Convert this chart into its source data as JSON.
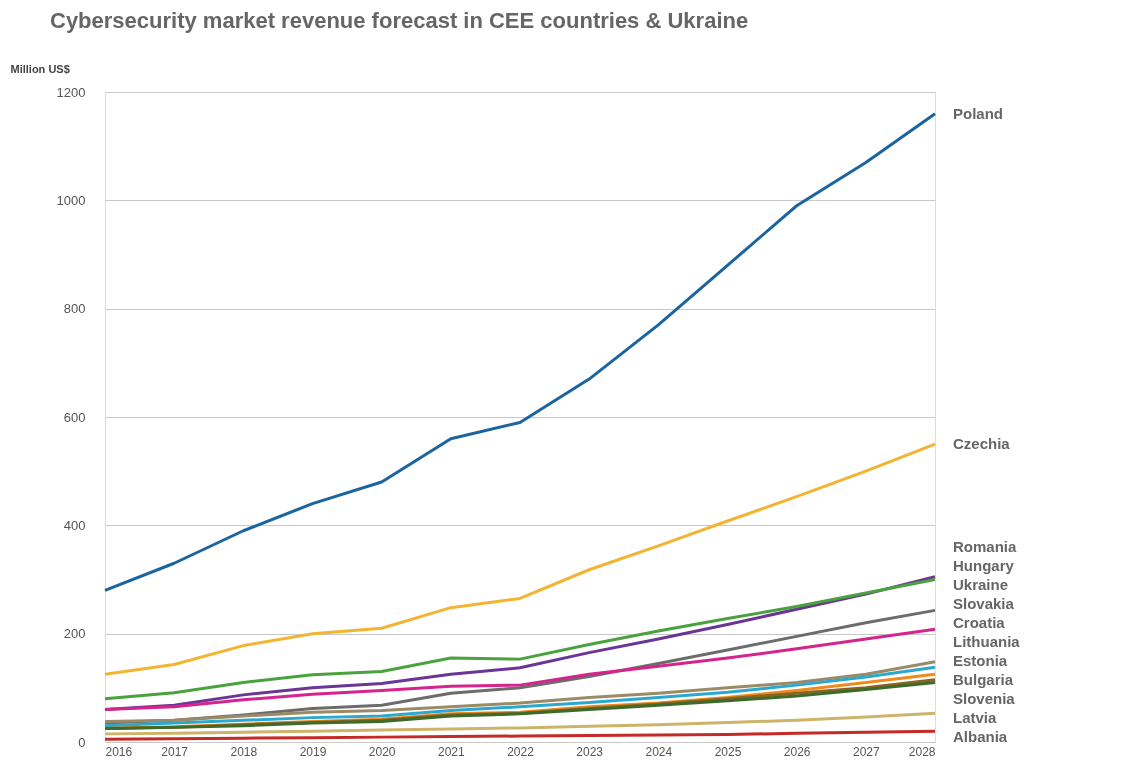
{
  "chart_data": {
    "type": "line",
    "title": "Cybersecurity market revenue forecast in CEE countries & Ukraine",
    "ylabel": "Million US$",
    "x": [
      2016,
      2017,
      2018,
      2019,
      2020,
      2021,
      2022,
      2023,
      2024,
      2025,
      2026,
      2027,
      2028
    ],
    "xlim": [
      2016,
      2028
    ],
    "xticks": [
      2016,
      2017,
      2018,
      2019,
      2020,
      2021,
      2022,
      2023,
      2024,
      2025,
      2026,
      2027,
      2028
    ],
    "ylim": [
      0,
      1200
    ],
    "yticks": [
      0,
      200,
      400,
      600,
      800,
      1000,
      1200
    ],
    "grid": "y",
    "marker": "none",
    "line_style": "solid",
    "series": [
      {
        "name": "Poland",
        "color": "#1a64a0",
        "values": [
          280,
          330,
          390,
          440,
          480,
          560,
          590,
          670,
          770,
          880,
          990,
          1070,
          1160
        ]
      },
      {
        "name": "Czechia",
        "color": "#f2b431",
        "values": [
          125,
          143,
          178,
          200,
          210,
          248,
          265,
          318,
          362,
          408,
          453,
          500,
          550
        ]
      },
      {
        "name": "Romania",
        "color": "#6a3596",
        "values": [
          60,
          68,
          87,
          100,
          108,
          125,
          137,
          165,
          190,
          217,
          245,
          273,
          305
        ]
      },
      {
        "name": "Hungary",
        "color": "#4aa23e",
        "values": [
          80,
          91,
          110,
          124,
          130,
          155,
          153,
          180,
          205,
          228,
          250,
          275,
          300
        ]
      },
      {
        "name": "Ukraine",
        "color": "#6c6c6c",
        "values": [
          35,
          40,
          50,
          62,
          68,
          90,
          100,
          121,
          145,
          170,
          195,
          220,
          243
        ]
      },
      {
        "name": "Slovakia",
        "color": "#d6248e",
        "values": [
          60,
          65,
          78,
          88,
          95,
          103,
          105,
          125,
          140,
          155,
          172,
          190,
          208
        ]
      },
      {
        "name": "Croatia",
        "color": "#9a8a66",
        "values": [
          38,
          40,
          48,
          55,
          58,
          65,
          72,
          82,
          90,
          100,
          110,
          125,
          148
        ]
      },
      {
        "name": "Lithuania",
        "color": "#2aa8d0",
        "values": [
          30,
          35,
          40,
          45,
          48,
          58,
          65,
          73,
          82,
          92,
          105,
          120,
          138
        ]
      },
      {
        "name": "Estonia",
        "color": "#ee8a1e",
        "values": [
          25,
          28,
          33,
          38,
          42,
          52,
          55,
          65,
          72,
          82,
          95,
          110,
          125
        ]
      },
      {
        "name": "Bulgaria",
        "color": "#8a6420",
        "values": [
          25,
          27,
          32,
          36,
          40,
          50,
          53,
          62,
          70,
          80,
          90,
          100,
          115
        ]
      },
      {
        "name": "Slovenia",
        "color": "#3d6b2a",
        "values": [
          25,
          27,
          30,
          35,
          38,
          48,
          52,
          60,
          68,
          76,
          85,
          97,
          110
        ]
      },
      {
        "name": "Latvia",
        "color": "#cdb46a",
        "values": [
          15,
          16,
          18,
          20,
          22,
          24,
          26,
          29,
          32,
          36,
          40,
          46,
          53
        ]
      },
      {
        "name": "Albania",
        "color": "#c42a26",
        "values": [
          5,
          6,
          7,
          8,
          9,
          10,
          11,
          12,
          13,
          14,
          16,
          18,
          20
        ]
      }
    ]
  }
}
